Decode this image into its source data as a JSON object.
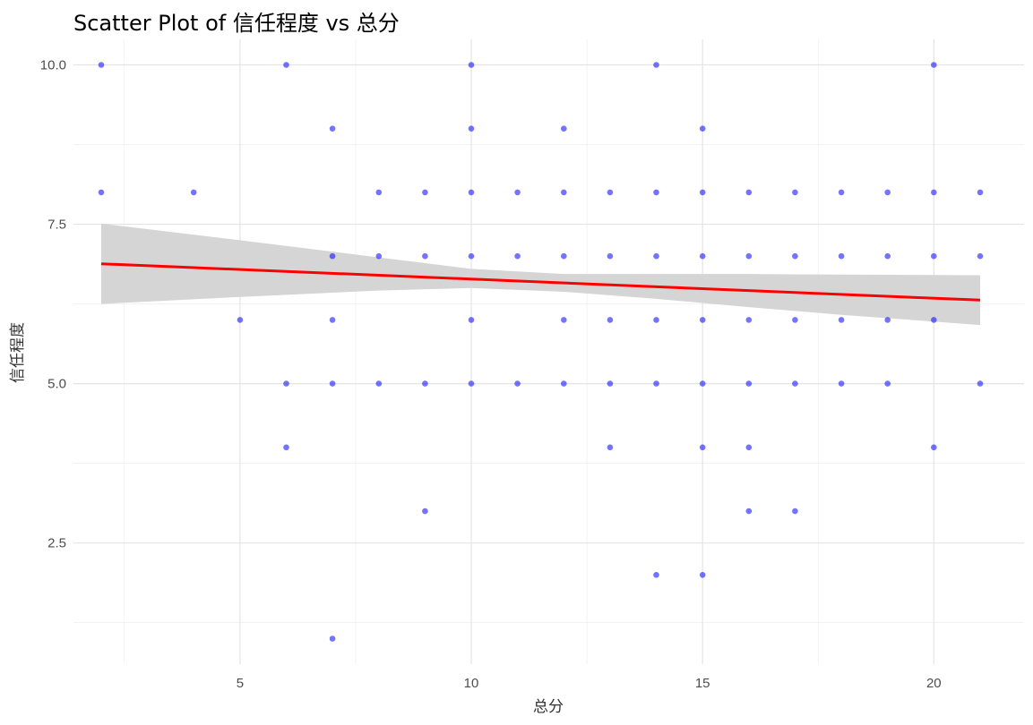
{
  "chart_data": {
    "type": "scatter",
    "title": "Scatter Plot of 信任程度 vs 总分",
    "xlabel": "总分",
    "ylabel": "信任程度",
    "xlim": [
      1.4,
      21.95
    ],
    "ylim": [
      0.6,
      10.4
    ],
    "x_ticks": [
      5,
      10,
      15,
      20
    ],
    "x_tick_labels": [
      "5",
      "10",
      "15",
      "20"
    ],
    "y_ticks": [
      2.5,
      5.0,
      7.5,
      10.0
    ],
    "y_tick_labels": [
      "2.5",
      "5.0",
      "7.5",
      "10.0"
    ],
    "x_minor_ticks": [
      2.5,
      7.5,
      12.5,
      17.5
    ],
    "y_minor_ticks": [
      1.25,
      3.75,
      6.25,
      8.75
    ],
    "grid": true,
    "point_color": "#0000ff",
    "points": [
      [
        2,
        10
      ],
      [
        2,
        8
      ],
      [
        4,
        8
      ],
      [
        5,
        6
      ],
      [
        6,
        10
      ],
      [
        6,
        5
      ],
      [
        6,
        4
      ],
      [
        7,
        9
      ],
      [
        7,
        7
      ],
      [
        7,
        6
      ],
      [
        7,
        5
      ],
      [
        7,
        1
      ],
      [
        8,
        8
      ],
      [
        8,
        7
      ],
      [
        8,
        5
      ],
      [
        9,
        8
      ],
      [
        9,
        7
      ],
      [
        9,
        5
      ],
      [
        9,
        3
      ],
      [
        10,
        10
      ],
      [
        10,
        9
      ],
      [
        10,
        8
      ],
      [
        10,
        7
      ],
      [
        10,
        6
      ],
      [
        10,
        5
      ],
      [
        11,
        8
      ],
      [
        11,
        7
      ],
      [
        11,
        5
      ],
      [
        12,
        9
      ],
      [
        12,
        8
      ],
      [
        12,
        7
      ],
      [
        12,
        6
      ],
      [
        12,
        5
      ],
      [
        13,
        8
      ],
      [
        13,
        7
      ],
      [
        13,
        6
      ],
      [
        13,
        5
      ],
      [
        13,
        4
      ],
      [
        14,
        10
      ],
      [
        14,
        8
      ],
      [
        14,
        7
      ],
      [
        14,
        6
      ],
      [
        14,
        5
      ],
      [
        14,
        2
      ],
      [
        15,
        9
      ],
      [
        15,
        8
      ],
      [
        15,
        7
      ],
      [
        15,
        6
      ],
      [
        15,
        5
      ],
      [
        15,
        4
      ],
      [
        15,
        2
      ],
      [
        16,
        8
      ],
      [
        16,
        7
      ],
      [
        16,
        6
      ],
      [
        16,
        5
      ],
      [
        16,
        4
      ],
      [
        16,
        3
      ],
      [
        17,
        8
      ],
      [
        17,
        7
      ],
      [
        17,
        6
      ],
      [
        17,
        5
      ],
      [
        17,
        3
      ],
      [
        18,
        8
      ],
      [
        18,
        7
      ],
      [
        18,
        6
      ],
      [
        18,
        5
      ],
      [
        19,
        8
      ],
      [
        19,
        7
      ],
      [
        19,
        6
      ],
      [
        19,
        5
      ],
      [
        20,
        10
      ],
      [
        20,
        8
      ],
      [
        20,
        7
      ],
      [
        20,
        6
      ],
      [
        20,
        4
      ],
      [
        21,
        8
      ],
      [
        21,
        7
      ],
      [
        21,
        5
      ]
    ],
    "fit_line": {
      "color": "#ff0000",
      "x": [
        2,
        21
      ],
      "y": [
        6.88,
        6.31
      ]
    },
    "confidence_band": {
      "color": "#d3d3d3",
      "x": [
        2,
        5,
        8,
        10,
        12,
        14,
        16,
        18,
        21
      ],
      "lower": [
        6.25,
        6.36,
        6.46,
        6.5,
        6.44,
        6.33,
        6.2,
        6.08,
        5.92
      ],
      "upper": [
        7.51,
        7.25,
        6.98,
        6.8,
        6.72,
        6.72,
        6.72,
        6.71,
        6.7
      ]
    }
  }
}
